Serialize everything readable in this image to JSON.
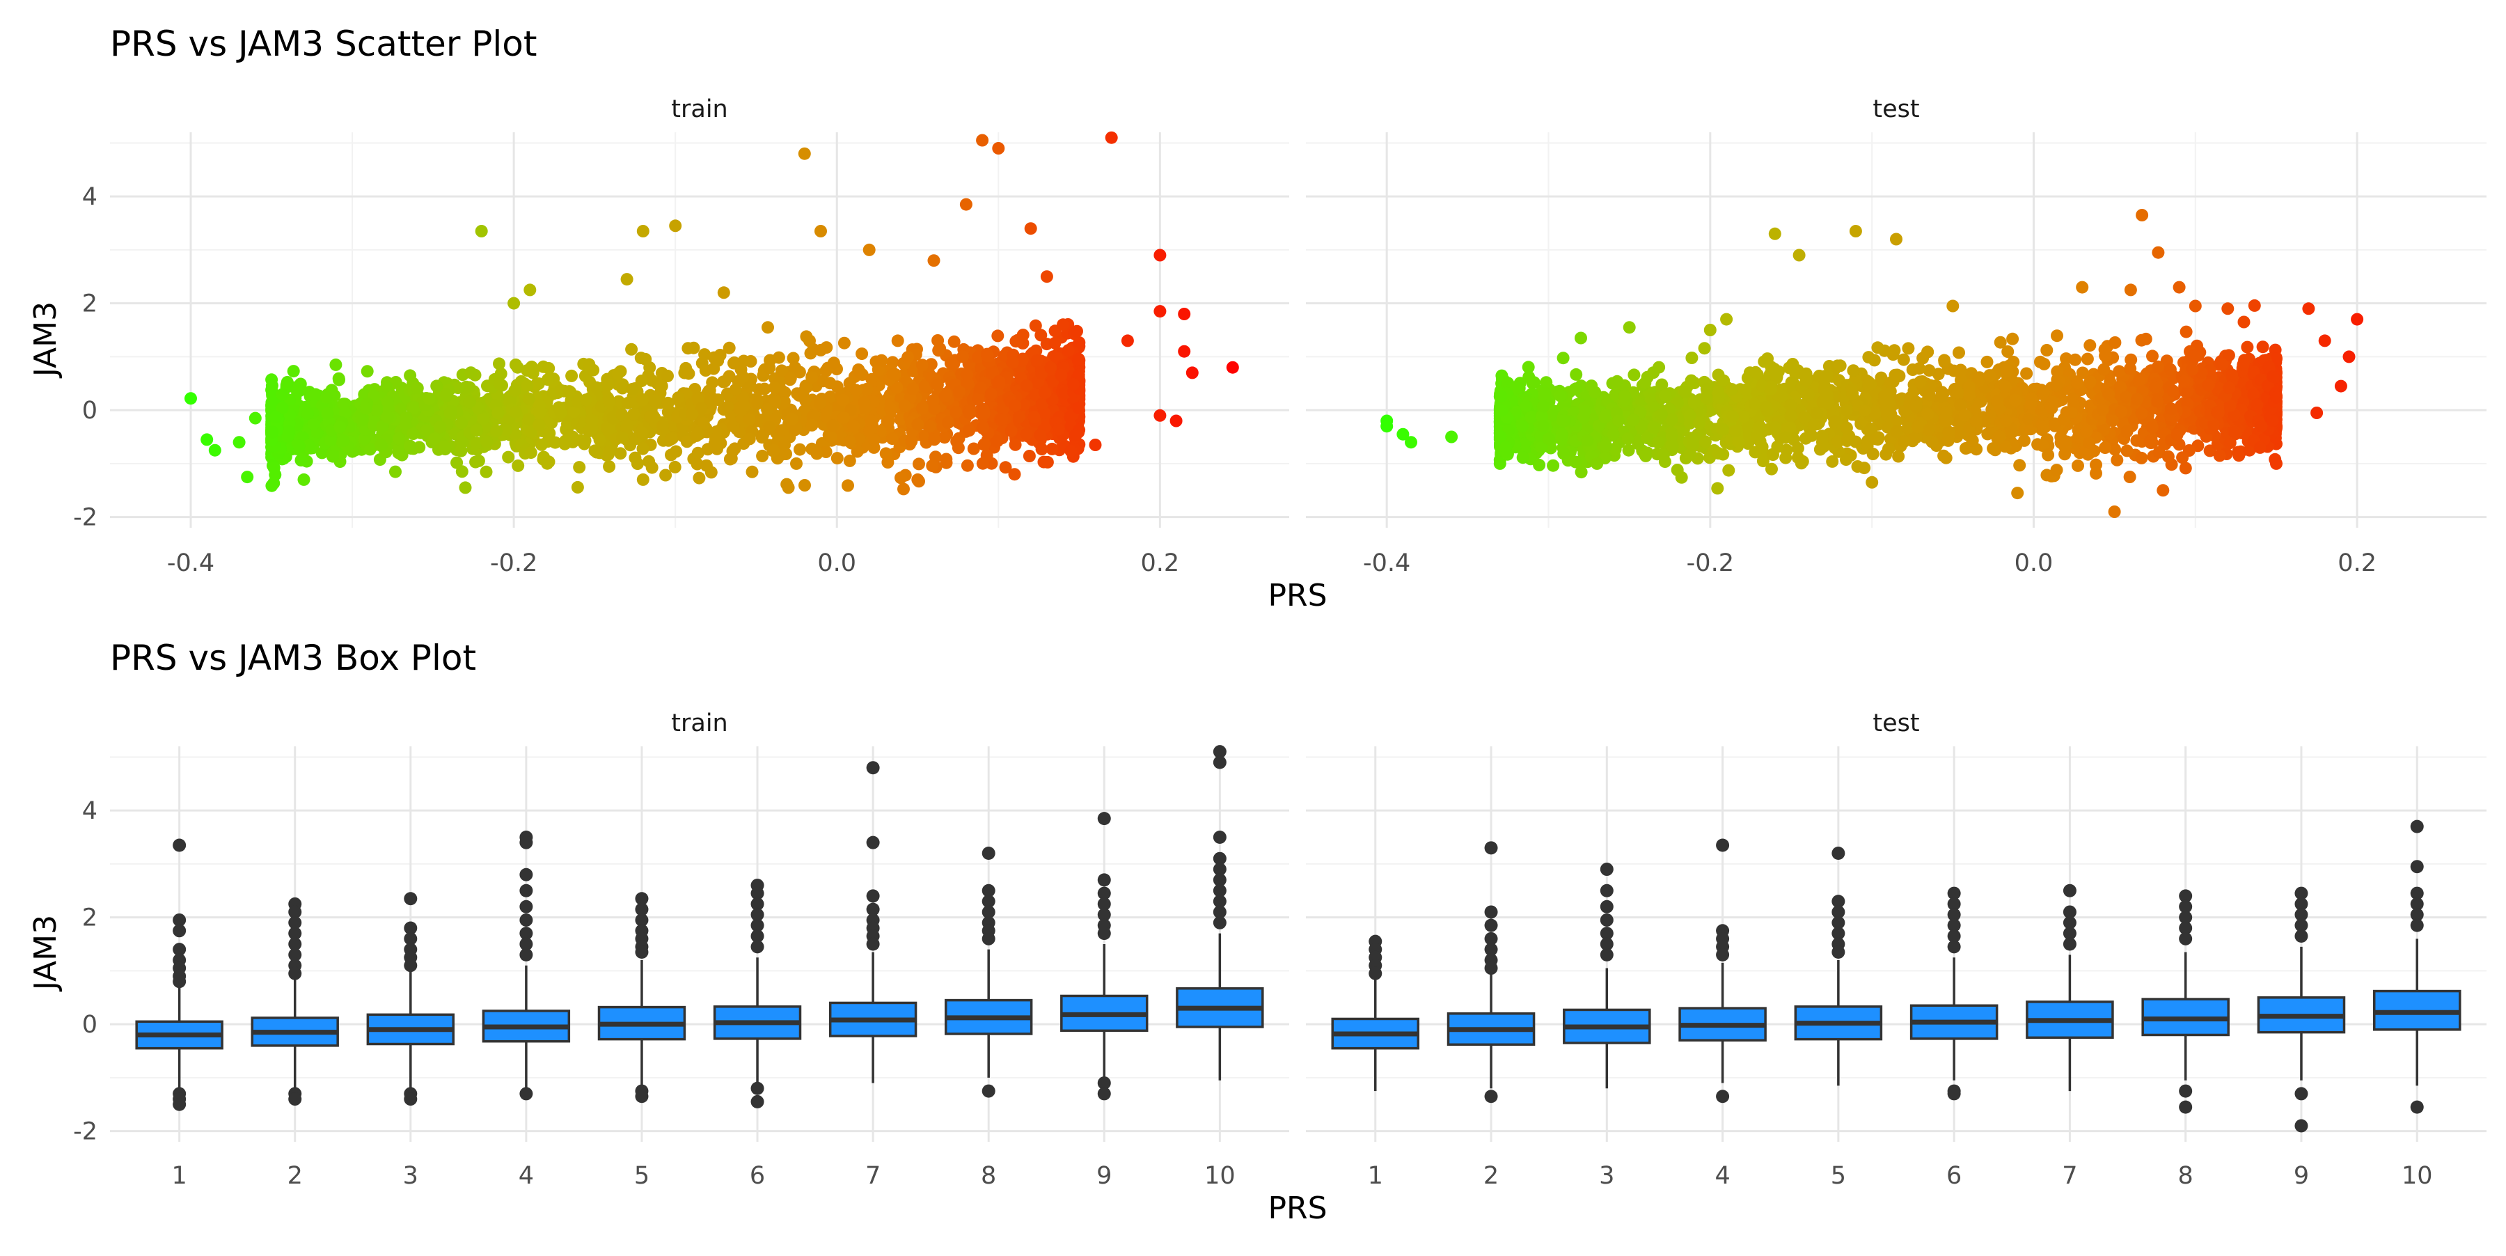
{
  "figure": {
    "scatter_title": "PRS vs JAM3 Scatter Plot",
    "box_title": "PRS vs JAM3 Box Plot",
    "scatter_xlabel": "PRS",
    "scatter_ylabel": "JAM3",
    "box_xlabel": "PRS",
    "box_ylabel": "JAM3",
    "facets": [
      "train",
      "test"
    ]
  },
  "chart_data": [
    {
      "type": "scatter",
      "title": "PRS vs JAM3 Scatter Plot",
      "xlabel": "PRS",
      "ylabel": "JAM3",
      "xlim": [
        -0.45,
        0.28
      ],
      "ylim": [
        -2.2,
        5.2
      ],
      "x_ticks": [
        -0.4,
        -0.2,
        0.0,
        0.2
      ],
      "x_tick_labels": [
        "-0.4",
        "-0.2",
        "0.0",
        "0.2"
      ],
      "y_ticks": [
        -2,
        0,
        2,
        4
      ],
      "y_tick_labels": [
        "-2",
        "0",
        "2",
        "4"
      ],
      "grid": true,
      "color_gradient": [
        "#33ff00",
        "#b8b800",
        "#e08000",
        "#ff0000"
      ],
      "color_by": "PRS",
      "facets": [
        {
          "name": "train",
          "cloud": [
            {
              "x": -0.35,
              "mean": -0.3,
              "sd": 0.32
            },
            {
              "x": -0.3,
              "mean": -0.25,
              "sd": 0.36
            },
            {
              "x": -0.2,
              "mean": -0.15,
              "sd": 0.42
            },
            {
              "x": -0.1,
              "mean": -0.05,
              "sd": 0.48
            },
            {
              "x": 0.0,
              "mean": 0.05,
              "sd": 0.5
            },
            {
              "x": 0.05,
              "mean": 0.15,
              "sd": 0.52
            },
            {
              "x": 0.1,
              "mean": 0.22,
              "sd": 0.5
            },
            {
              "x": 0.15,
              "mean": 0.3,
              "sd": 0.45
            }
          ],
          "points": [
            [
              -0.4,
              0.22
            ],
            [
              -0.39,
              -0.55
            ],
            [
              -0.385,
              -0.75
            ],
            [
              -0.37,
              -0.6
            ],
            [
              -0.365,
              -1.25
            ],
            [
              -0.36,
              -0.15
            ],
            [
              -0.33,
              -1.3
            ],
            [
              -0.22,
              3.35
            ],
            [
              -0.2,
              2.0
            ],
            [
              -0.19,
              2.25
            ],
            [
              -0.12,
              3.35
            ],
            [
              -0.1,
              3.45
            ],
            [
              -0.12,
              -1.3
            ],
            [
              -0.23,
              -1.45
            ],
            [
              -0.03,
              -1.45
            ],
            [
              -0.02,
              4.8
            ],
            [
              -0.01,
              3.35
            ],
            [
              0.02,
              3.0
            ],
            [
              0.06,
              2.8
            ],
            [
              0.08,
              3.85
            ],
            [
              0.09,
              5.05
            ],
            [
              0.1,
              4.9
            ],
            [
              0.12,
              3.4
            ],
            [
              0.13,
              2.5
            ],
            [
              0.17,
              5.1
            ],
            [
              0.2,
              2.9
            ],
            [
              0.2,
              1.85
            ],
            [
              0.215,
              1.8
            ],
            [
              0.215,
              1.1
            ],
            [
              0.22,
              0.7
            ],
            [
              0.245,
              0.8
            ],
            [
              0.2,
              -0.1
            ],
            [
              0.21,
              -0.2
            ],
            [
              0.16,
              -0.65
            ],
            [
              0.18,
              1.3
            ],
            [
              0.14,
              1.6
            ],
            [
              -0.07,
              2.2
            ],
            [
              -0.13,
              2.45
            ],
            [
              0.05,
              -1.3
            ],
            [
              0.11,
              -1.2
            ]
          ]
        },
        {
          "name": "test",
          "cloud": [
            {
              "x": -0.33,
              "mean": -0.25,
              "sd": 0.3
            },
            {
              "x": -0.28,
              "mean": -0.2,
              "sd": 0.34
            },
            {
              "x": -0.2,
              "mean": -0.1,
              "sd": 0.4
            },
            {
              "x": -0.1,
              "mean": 0.0,
              "sd": 0.45
            },
            {
              "x": 0.0,
              "mean": 0.05,
              "sd": 0.46
            },
            {
              "x": 0.05,
              "mean": 0.1,
              "sd": 0.47
            },
            {
              "x": 0.1,
              "mean": 0.15,
              "sd": 0.45
            },
            {
              "x": 0.15,
              "mean": 0.2,
              "sd": 0.4
            }
          ],
          "points": [
            [
              -0.4,
              -0.2
            ],
            [
              -0.4,
              -0.3
            ],
            [
              -0.39,
              -0.45
            ],
            [
              -0.385,
              -0.6
            ],
            [
              -0.36,
              -0.5
            ],
            [
              -0.33,
              -1.0
            ],
            [
              -0.28,
              1.35
            ],
            [
              -0.25,
              1.55
            ],
            [
              -0.16,
              3.3
            ],
            [
              -0.145,
              2.9
            ],
            [
              -0.11,
              3.35
            ],
            [
              -0.085,
              3.2
            ],
            [
              -0.2,
              1.5
            ],
            [
              -0.19,
              1.7
            ],
            [
              -0.05,
              1.95
            ],
            [
              0.03,
              2.3
            ],
            [
              0.06,
              2.25
            ],
            [
              0.067,
              3.65
            ],
            [
              0.077,
              2.95
            ],
            [
              0.09,
              2.3
            ],
            [
              0.12,
              1.9
            ],
            [
              0.13,
              1.65
            ],
            [
              0.17,
              1.9
            ],
            [
              0.2,
              1.7
            ],
            [
              0.18,
              1.3
            ],
            [
              0.195,
              1.0
            ],
            [
              0.19,
              0.45
            ],
            [
              0.175,
              -0.05
            ],
            [
              0.15,
              -1.0
            ],
            [
              0.14,
              -0.7
            ],
            [
              -0.01,
              -1.55
            ],
            [
              0.05,
              -1.9
            ],
            [
              0.08,
              -1.5
            ],
            [
              -0.1,
              -1.35
            ],
            [
              -0.27,
              -1.0
            ],
            [
              0.1,
              1.95
            ],
            [
              0.115,
              -0.85
            ]
          ]
        }
      ]
    },
    {
      "type": "box",
      "title": "PRS vs JAM3 Box Plot",
      "xlabel": "PRS",
      "ylabel": "JAM3",
      "categories": [
        "1",
        "2",
        "3",
        "4",
        "5",
        "6",
        "7",
        "8",
        "9",
        "10"
      ],
      "ylim": [
        -2.2,
        5.2
      ],
      "y_ticks": [
        -2,
        0,
        2,
        4
      ],
      "y_tick_labels": [
        "-2",
        "0",
        "2",
        "4"
      ],
      "grid": true,
      "box_color": "#1e90ff",
      "facets": [
        {
          "name": "train",
          "boxes": [
            {
              "q1": -0.45,
              "median": -0.2,
              "q3": 0.05,
              "lower": -1.2,
              "upper": 0.75,
              "outliers": [
                3.35,
                1.95,
                1.75,
                1.4,
                1.2,
                1.05,
                0.9,
                0.8,
                -1.3,
                -1.4,
                -1.5
              ]
            },
            {
              "q1": -0.4,
              "median": -0.15,
              "q3": 0.12,
              "lower": -1.2,
              "upper": 0.85,
              "outliers": [
                2.25,
                2.1,
                1.9,
                1.7,
                1.5,
                1.3,
                1.1,
                0.95,
                -1.3,
                -1.4
              ]
            },
            {
              "q1": -0.37,
              "median": -0.1,
              "q3": 0.18,
              "lower": -1.2,
              "upper": 1.0,
              "outliers": [
                2.35,
                1.8,
                1.6,
                1.4,
                1.25,
                1.1,
                -1.3,
                -1.4
              ]
            },
            {
              "q1": -0.32,
              "median": -0.05,
              "q3": 0.25,
              "lower": -1.2,
              "upper": 1.1,
              "outliers": [
                3.5,
                3.4,
                2.8,
                2.5,
                2.2,
                1.95,
                1.7,
                1.5,
                1.3,
                -1.3
              ]
            },
            {
              "q1": -0.28,
              "median": 0.0,
              "q3": 0.32,
              "lower": -1.15,
              "upper": 1.2,
              "outliers": [
                2.35,
                2.15,
                1.95,
                1.75,
                1.6,
                1.45,
                1.35,
                -1.25,
                -1.35
              ]
            },
            {
              "q1": -0.27,
              "median": 0.03,
              "q3": 0.33,
              "lower": -1.1,
              "upper": 1.25,
              "outliers": [
                2.6,
                2.45,
                2.25,
                2.05,
                1.85,
                1.65,
                1.45,
                -1.2,
                -1.45
              ]
            },
            {
              "q1": -0.22,
              "median": 0.08,
              "q3": 0.4,
              "lower": -1.1,
              "upper": 1.35,
              "outliers": [
                4.8,
                3.4,
                2.4,
                2.15,
                1.95,
                1.8,
                1.65,
                1.5
              ]
            },
            {
              "q1": -0.18,
              "median": 0.12,
              "q3": 0.45,
              "lower": -1.0,
              "upper": 1.4,
              "outliers": [
                3.2,
                2.5,
                2.3,
                2.1,
                1.9,
                1.75,
                1.6,
                -1.25
              ]
            },
            {
              "q1": -0.12,
              "median": 0.18,
              "q3": 0.53,
              "lower": -1.0,
              "upper": 1.5,
              "outliers": [
                3.85,
                2.7,
                2.45,
                2.25,
                2.05,
                1.85,
                1.7,
                -1.1,
                -1.3
              ]
            },
            {
              "q1": -0.05,
              "median": 0.3,
              "q3": 0.67,
              "lower": -1.05,
              "upper": 1.7,
              "outliers": [
                5.1,
                4.9,
                3.5,
                3.1,
                2.9,
                2.7,
                2.5,
                2.3,
                2.1,
                1.9
              ]
            }
          ]
        },
        {
          "name": "test",
          "boxes": [
            {
              "q1": -0.45,
              "median": -0.18,
              "q3": 0.1,
              "lower": -1.25,
              "upper": 0.85,
              "outliers": [
                1.55,
                1.4,
                1.25,
                1.1,
                0.95
              ]
            },
            {
              "q1": -0.38,
              "median": -0.1,
              "q3": 0.2,
              "lower": -1.2,
              "upper": 0.95,
              "outliers": [
                3.3,
                2.1,
                1.85,
                1.6,
                1.4,
                1.2,
                1.05,
                -1.35
              ]
            },
            {
              "q1": -0.35,
              "median": -0.05,
              "q3": 0.27,
              "lower": -1.2,
              "upper": 1.05,
              "outliers": [
                2.9,
                2.5,
                2.2,
                1.95,
                1.7,
                1.5,
                1.3
              ]
            },
            {
              "q1": -0.3,
              "median": -0.02,
              "q3": 0.3,
              "lower": -1.1,
              "upper": 1.15,
              "outliers": [
                3.35,
                1.75,
                1.6,
                1.45,
                1.3,
                -1.35
              ]
            },
            {
              "q1": -0.28,
              "median": 0.02,
              "q3": 0.33,
              "lower": -1.15,
              "upper": 1.2,
              "outliers": [
                3.2,
                2.3,
                2.1,
                1.9,
                1.7,
                1.5,
                1.35
              ]
            },
            {
              "q1": -0.27,
              "median": 0.04,
              "q3": 0.35,
              "lower": -1.05,
              "upper": 1.25,
              "outliers": [
                2.45,
                2.25,
                2.05,
                1.85,
                1.65,
                1.45,
                -1.25,
                -1.3
              ]
            },
            {
              "q1": -0.25,
              "median": 0.07,
              "q3": 0.42,
              "lower": -1.25,
              "upper": 1.3,
              "outliers": [
                2.5,
                2.1,
                1.9,
                1.7,
                1.5
              ]
            },
            {
              "q1": -0.2,
              "median": 0.1,
              "q3": 0.47,
              "lower": -1.05,
              "upper": 1.35,
              "outliers": [
                2.4,
                2.2,
                2.0,
                1.8,
                1.6,
                -1.25,
                -1.55
              ]
            },
            {
              "q1": -0.15,
              "median": 0.15,
              "q3": 0.5,
              "lower": -1.05,
              "upper": 1.45,
              "outliers": [
                2.45,
                2.25,
                2.05,
                1.85,
                1.65,
                -1.3,
                -1.9
              ]
            },
            {
              "q1": -0.1,
              "median": 0.22,
              "q3": 0.62,
              "lower": -1.15,
              "upper": 1.6,
              "outliers": [
                3.7,
                2.95,
                2.45,
                2.25,
                2.05,
                1.85,
                -1.55
              ]
            }
          ]
        }
      ]
    }
  ]
}
